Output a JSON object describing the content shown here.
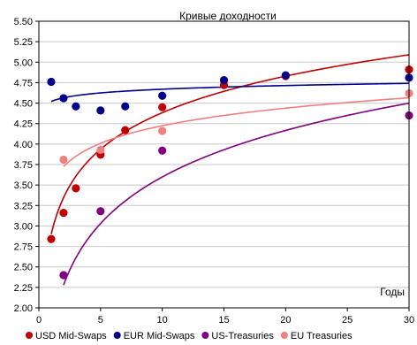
{
  "chart_data": {
    "type": "scatter",
    "title": "Кривые доходности",
    "xlabel": "Годы",
    "ylabel": "",
    "xlim": [
      0,
      30
    ],
    "ylim": [
      2.0,
      5.5
    ],
    "x_ticks": [
      0,
      5,
      10,
      15,
      20,
      25,
      30
    ],
    "x_tick_labels": [
      "0",
      "5",
      "10",
      "15",
      "20",
      "25",
      "30"
    ],
    "y_ticks": [
      2.0,
      2.25,
      2.5,
      2.75,
      3.0,
      3.25,
      3.5,
      3.75,
      4.0,
      4.25,
      4.5,
      4.75,
      5.0,
      5.25,
      5.5
    ],
    "y_tick_labels": [
      "2.00",
      "2.25",
      "2.50",
      "2.75",
      "3.00",
      "3.25",
      "3.50",
      "3.75",
      "4.00",
      "4.25",
      "4.50",
      "4.75",
      "5.00",
      "5.25",
      "5.50"
    ],
    "grid": "horizontal",
    "legend_position": "bottom",
    "series": [
      {
        "name": "USD Mid-Swaps",
        "color": "#c00000",
        "points": [
          [
            1,
            2.84
          ],
          [
            2,
            3.16
          ],
          [
            3,
            3.46
          ],
          [
            5,
            3.87
          ],
          [
            7,
            4.17
          ],
          [
            10,
            4.45
          ],
          [
            15,
            4.72
          ],
          [
            20,
            4.83
          ],
          [
            30,
            4.91
          ]
        ],
        "trend": {
          "a": 2.9,
          "b": 0.644,
          "x_from": 1,
          "x_to": 30
        }
      },
      {
        "name": "EUR Mid-Swaps",
        "color": "#00008b",
        "points": [
          [
            1,
            4.76
          ],
          [
            2,
            4.56
          ],
          [
            3,
            4.46
          ],
          [
            5,
            4.41
          ],
          [
            7,
            4.46
          ],
          [
            10,
            4.59
          ],
          [
            15,
            4.78
          ],
          [
            20,
            4.84
          ],
          [
            30,
            4.81
          ]
        ],
        "trend": {
          "a": 4.52,
          "b": 0.065,
          "x_from": 1,
          "x_to": 30
        }
      },
      {
        "name": "US-Treasuries",
        "color": "#800080",
        "points": [
          [
            2,
            2.4
          ],
          [
            5,
            3.18
          ],
          [
            10,
            3.92
          ],
          [
            30,
            4.35
          ]
        ],
        "trend": {
          "a": 1.71,
          "b": 0.82,
          "x_from": 2,
          "x_to": 30
        }
      },
      {
        "name": "EU Treasuries",
        "color": "#f08080",
        "points": [
          [
            2,
            3.81
          ],
          [
            5,
            3.93
          ],
          [
            10,
            4.16
          ],
          [
            30,
            4.62
          ]
        ],
        "trend": {
          "a": 3.51,
          "b": 0.31,
          "x_from": 2,
          "x_to": 30
        }
      }
    ]
  }
}
